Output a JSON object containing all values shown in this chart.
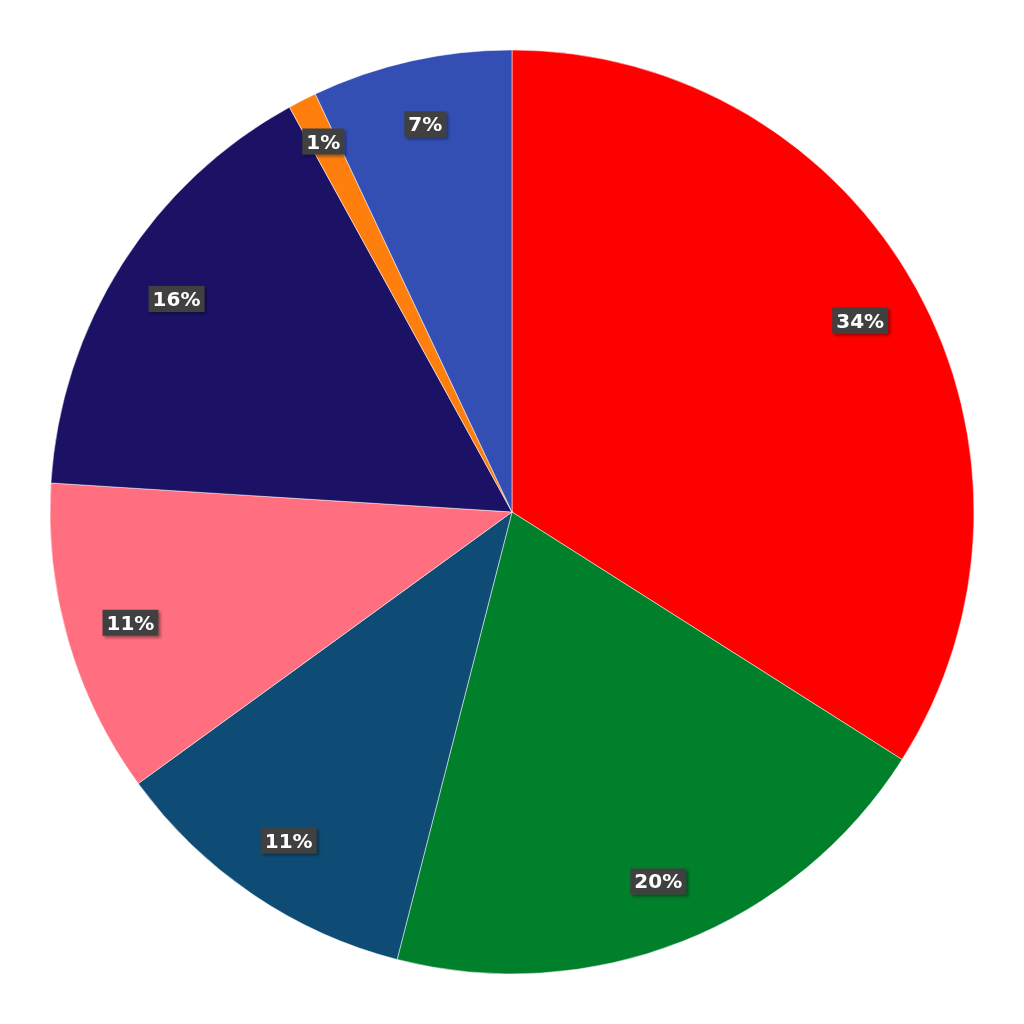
{
  "chart_data": {
    "type": "pie",
    "categories": [
      null,
      null,
      null,
      null,
      null,
      null,
      null
    ],
    "values": [
      34,
      20,
      11,
      11,
      16,
      1,
      7
    ],
    "colors": [
      "#ff0000",
      "#00802b",
      "#0e4c75",
      "#ff6f7f",
      "#1c1265",
      "#ff7f0e",
      "#344fb4"
    ],
    "value_labels": [
      "34%",
      "20%",
      "11%",
      "11%",
      "16%",
      "1%",
      "7%"
    ]
  }
}
